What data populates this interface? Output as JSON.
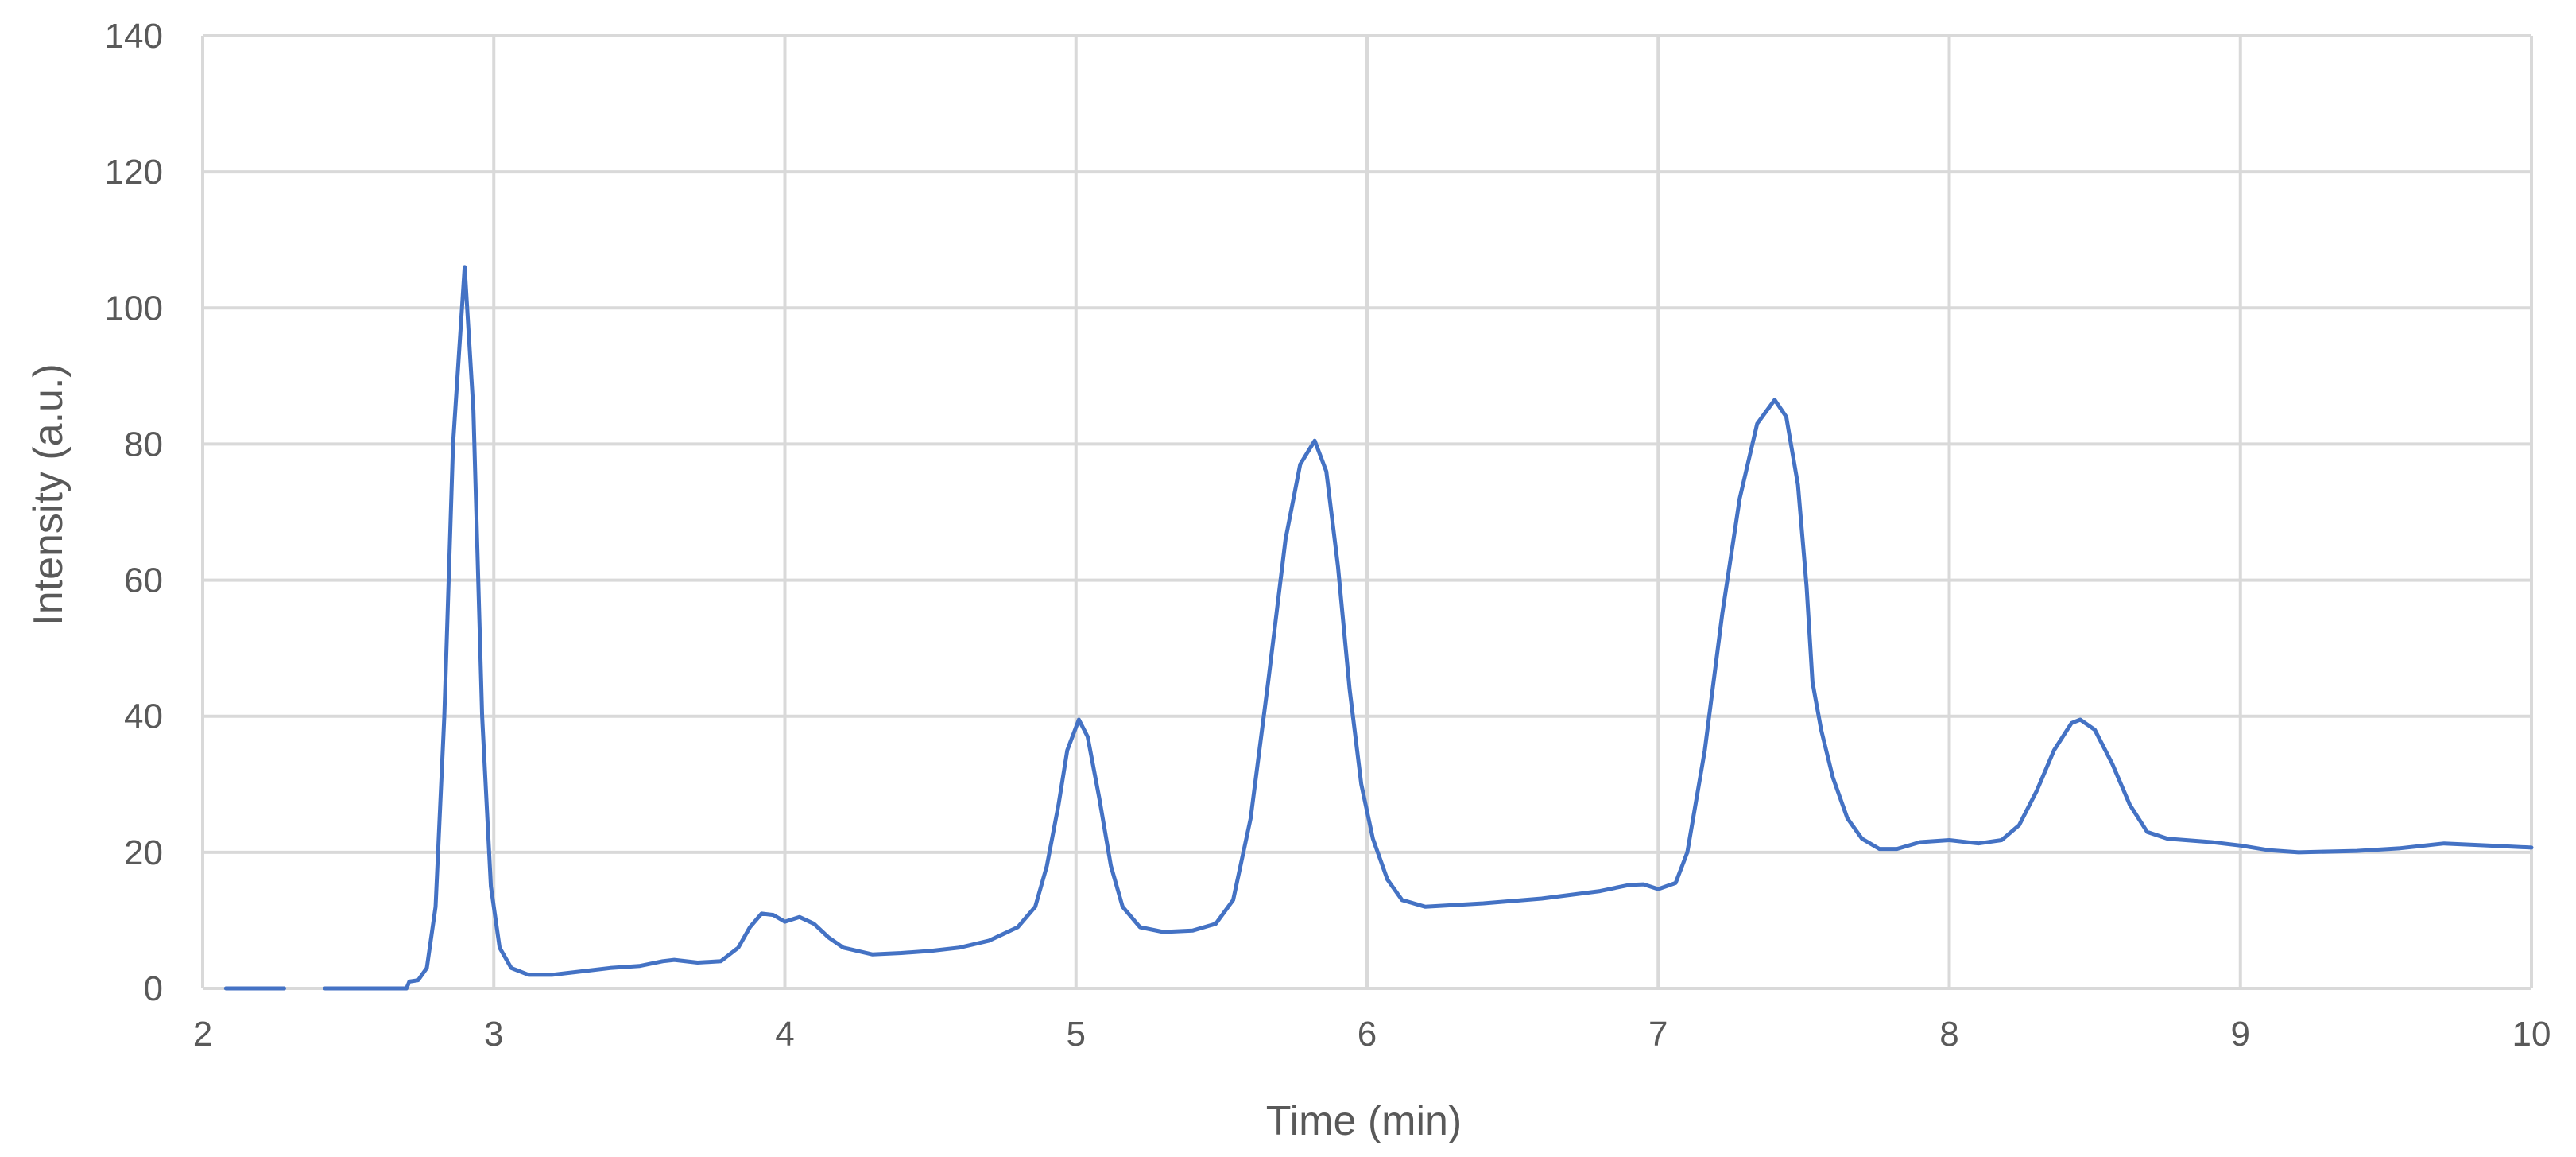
{
  "chart_data": {
    "type": "line",
    "title": "",
    "xlabel": "Time (min)",
    "ylabel": "Intensity (a.u.)",
    "xlim": [
      2,
      10
    ],
    "ylim": [
      0,
      140
    ],
    "xticks": [
      2,
      3,
      4,
      5,
      6,
      7,
      8,
      9,
      10
    ],
    "yticks": [
      0,
      20,
      40,
      60,
      80,
      100,
      120,
      140
    ],
    "grid": true,
    "legend": "none",
    "colors": {
      "series": "#4472c4",
      "grid": "#d9d9d9",
      "text": "#595959"
    },
    "series": [
      {
        "segments": [
          [
            [
              2.08,
              0
            ],
            [
              2.28,
              0
            ]
          ],
          [
            [
              2.42,
              0
            ],
            [
              2.7,
              0
            ],
            [
              2.71,
              1.0
            ],
            [
              2.74,
              1.2
            ],
            [
              2.77,
              3
            ],
            [
              2.8,
              12
            ],
            [
              2.83,
              40
            ],
            [
              2.86,
              80
            ],
            [
              2.9,
              106
            ],
            [
              2.93,
              85
            ],
            [
              2.96,
              40
            ],
            [
              2.99,
              15
            ],
            [
              3.02,
              6
            ],
            [
              3.06,
              3
            ],
            [
              3.12,
              2
            ],
            [
              3.2,
              2
            ],
            [
              3.3,
              2.5
            ],
            [
              3.4,
              3
            ],
            [
              3.5,
              3.3
            ],
            [
              3.58,
              4
            ],
            [
              3.62,
              4.2
            ],
            [
              3.7,
              3.8
            ],
            [
              3.78,
              4
            ],
            [
              3.84,
              6
            ],
            [
              3.88,
              9
            ],
            [
              3.92,
              11
            ],
            [
              3.96,
              10.8
            ],
            [
              4.0,
              9.8
            ],
            [
              4.05,
              10.5
            ],
            [
              4.1,
              9.5
            ],
            [
              4.15,
              7.5
            ],
            [
              4.2,
              6
            ],
            [
              4.3,
              5
            ],
            [
              4.4,
              5.2
            ],
            [
              4.5,
              5.5
            ],
            [
              4.6,
              6
            ],
            [
              4.7,
              7
            ],
            [
              4.8,
              9
            ],
            [
              4.86,
              12
            ],
            [
              4.9,
              18
            ],
            [
              4.94,
              27
            ],
            [
              4.97,
              35
            ],
            [
              5.01,
              39.5
            ],
            [
              5.04,
              37
            ],
            [
              5.08,
              28
            ],
            [
              5.12,
              18
            ],
            [
              5.16,
              12
            ],
            [
              5.22,
              9
            ],
            [
              5.3,
              8.3
            ],
            [
              5.4,
              8.5
            ],
            [
              5.48,
              9.5
            ],
            [
              5.54,
              13
            ],
            [
              5.6,
              25
            ],
            [
              5.66,
              45
            ],
            [
              5.72,
              66
            ],
            [
              5.77,
              77
            ],
            [
              5.82,
              80.5
            ],
            [
              5.86,
              76
            ],
            [
              5.9,
              62
            ],
            [
              5.94,
              44
            ],
            [
              5.98,
              30
            ],
            [
              6.02,
              22
            ],
            [
              6.07,
              16
            ],
            [
              6.12,
              13
            ],
            [
              6.2,
              12
            ],
            [
              6.4,
              12.5
            ],
            [
              6.6,
              13.2
            ],
            [
              6.8,
              14.3
            ],
            [
              6.9,
              15.2
            ],
            [
              6.95,
              15.3
            ],
            [
              7.0,
              14.6
            ],
            [
              7.06,
              15.5
            ],
            [
              7.1,
              20
            ],
            [
              7.16,
              35
            ],
            [
              7.22,
              55
            ],
            [
              7.28,
              72
            ],
            [
              7.34,
              83
            ],
            [
              7.4,
              86.5
            ],
            [
              7.44,
              84
            ],
            [
              7.48,
              74
            ],
            [
              7.5,
              64
            ],
            [
              7.51,
              59
            ],
            [
              7.53,
              45
            ],
            [
              7.56,
              38
            ],
            [
              7.6,
              31
            ],
            [
              7.65,
              25
            ],
            [
              7.7,
              22
            ],
            [
              7.76,
              20.5
            ],
            [
              7.82,
              20.5
            ],
            [
              7.9,
              21.5
            ],
            [
              8.0,
              21.8
            ],
            [
              8.1,
              21.3
            ],
            [
              8.18,
              21.8
            ],
            [
              8.24,
              24
            ],
            [
              8.3,
              29
            ],
            [
              8.36,
              35
            ],
            [
              8.42,
              39
            ],
            [
              8.45,
              39.5
            ],
            [
              8.5,
              38
            ],
            [
              8.56,
              33
            ],
            [
              8.62,
              27
            ],
            [
              8.68,
              23
            ],
            [
              8.75,
              22
            ],
            [
              8.9,
              21.5
            ],
            [
              9.0,
              21
            ],
            [
              9.1,
              20.3
            ],
            [
              9.2,
              20
            ],
            [
              9.4,
              20.2
            ],
            [
              9.55,
              20.6
            ],
            [
              9.7,
              21.3
            ],
            [
              9.85,
              21
            ],
            [
              10.0,
              20.7
            ]
          ]
        ]
      }
    ]
  }
}
